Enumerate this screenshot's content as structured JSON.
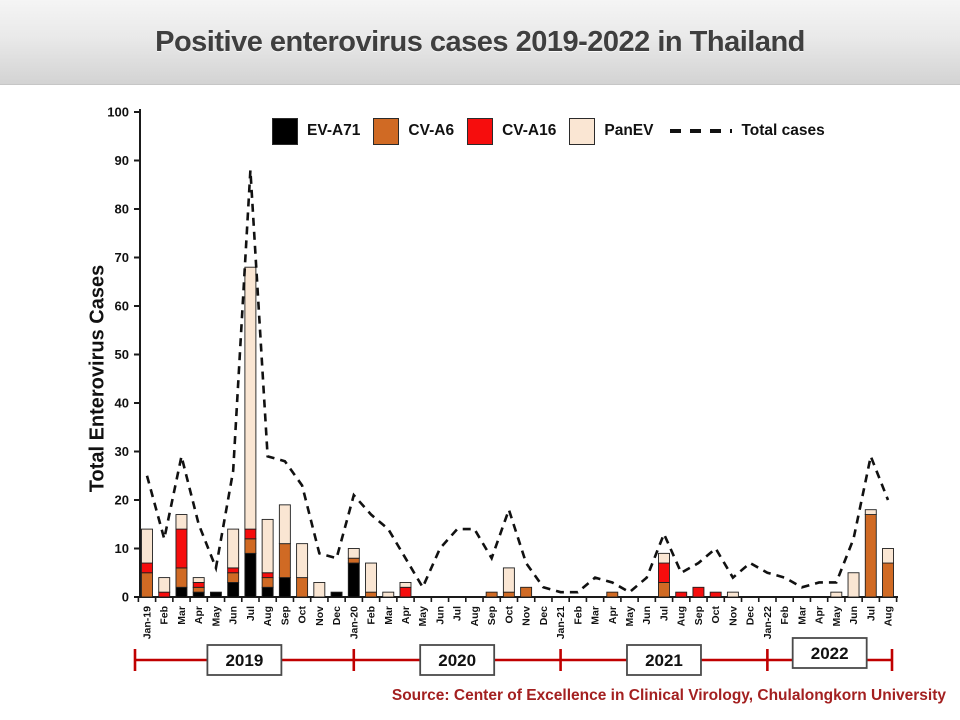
{
  "slide": {
    "title": "Positive enterovirus cases 2019-2022 in Thailand",
    "source": "Source: Center of Excellence in Clinical Virology, Chulalongkorn University"
  },
  "colors": {
    "title_text": "#3f3f3f",
    "source_text": "#a32020",
    "year_band": "#c00000",
    "axis": "#1a1a1a",
    "plot_background": "#ffffff"
  },
  "chart_data": {
    "type": "bar",
    "subtype": "stacked-bars-with-dashed-total-line",
    "title": "Positive enterovirus cases 2019-2022 in Thailand",
    "xlabel": "",
    "ylabel": "Total Enterovirus Cases",
    "ylim": [
      0,
      100
    ],
    "ytick_step": 10,
    "grid": false,
    "legend_position": "top",
    "categories": [
      "Jan-19",
      "Feb",
      "Mar",
      "Apr",
      "May",
      "Jun",
      "Jul",
      "Aug",
      "Sep",
      "Oct",
      "Nov",
      "Dec",
      "Jan-20",
      "Feb",
      "Mar",
      "Apr",
      "May",
      "Jun",
      "Jul",
      "Aug",
      "Sep",
      "Oct",
      "Nov",
      "Dec",
      "Jan-21",
      "Feb",
      "Mar",
      "Apr",
      "May",
      "Jun",
      "Jul",
      "Aug",
      "Sep",
      "Oct",
      "Nov",
      "Dec",
      "Jan-22",
      "Feb",
      "Mar",
      "Apr",
      "May",
      "Jun",
      "Jul",
      "Aug"
    ],
    "series": [
      {
        "name": "EV-A71",
        "color": "#000000",
        "values": [
          0,
          0,
          2,
          1,
          1,
          3,
          9,
          2,
          4,
          0,
          0,
          1,
          7,
          0,
          0,
          0,
          0,
          0,
          0,
          0,
          0,
          0,
          0,
          0,
          0,
          0,
          0,
          0,
          0,
          0,
          0,
          0,
          0,
          0,
          0,
          0,
          0,
          0,
          0,
          0,
          0,
          0,
          0,
          0
        ]
      },
      {
        "name": "CV-A6",
        "color": "#d06a24",
        "values": [
          5,
          0,
          4,
          1,
          0,
          2,
          3,
          2,
          7,
          4,
          0,
          0,
          1,
          1,
          0,
          0,
          0,
          0,
          0,
          0,
          1,
          1,
          2,
          0,
          0,
          0,
          0,
          1,
          0,
          0,
          3,
          0,
          0,
          0,
          0,
          0,
          0,
          0,
          0,
          0,
          0,
          0,
          17,
          7
        ]
      },
      {
        "name": "CV-A16",
        "color": "#f60d0d",
        "values": [
          2,
          1,
          8,
          1,
          0,
          1,
          2,
          1,
          0,
          0,
          0,
          0,
          0,
          0,
          0,
          2,
          0,
          0,
          0,
          0,
          0,
          0,
          0,
          0,
          0,
          0,
          0,
          0,
          0,
          0,
          4,
          1,
          2,
          1,
          0,
          0,
          0,
          0,
          0,
          0,
          0,
          0,
          0,
          0
        ]
      },
      {
        "name": "PanEV",
        "color": "#fae6d3",
        "values": [
          7,
          3,
          3,
          1,
          0,
          8,
          54,
          11,
          8,
          7,
          3,
          0,
          2,
          6,
          1,
          1,
          0,
          0,
          0,
          0,
          0,
          5,
          0,
          0,
          0,
          0,
          0,
          0,
          0,
          0,
          2,
          0,
          0,
          0,
          1,
          0,
          0,
          0,
          0,
          0,
          1,
          5,
          1,
          3
        ]
      }
    ],
    "line": {
      "name": "Total cases",
      "dashed": true,
      "color": "#111111",
      "values": [
        25,
        12,
        29,
        15,
        6,
        26,
        88,
        29,
        28,
        23,
        9,
        8,
        21,
        17,
        14,
        8,
        2,
        10,
        14,
        14,
        8,
        18,
        7,
        2,
        1,
        1,
        4,
        3,
        1,
        4,
        13,
        5,
        7,
        10,
        4,
        7,
        5,
        4,
        2,
        3,
        3,
        12,
        29,
        20
      ]
    },
    "year_groups": [
      {
        "label": "2019",
        "from": 0,
        "to": 11
      },
      {
        "label": "2020",
        "from": 12,
        "to": 23
      },
      {
        "label": "2021",
        "from": 24,
        "to": 35
      },
      {
        "label": "2022",
        "from": 36,
        "to": 43
      }
    ]
  }
}
